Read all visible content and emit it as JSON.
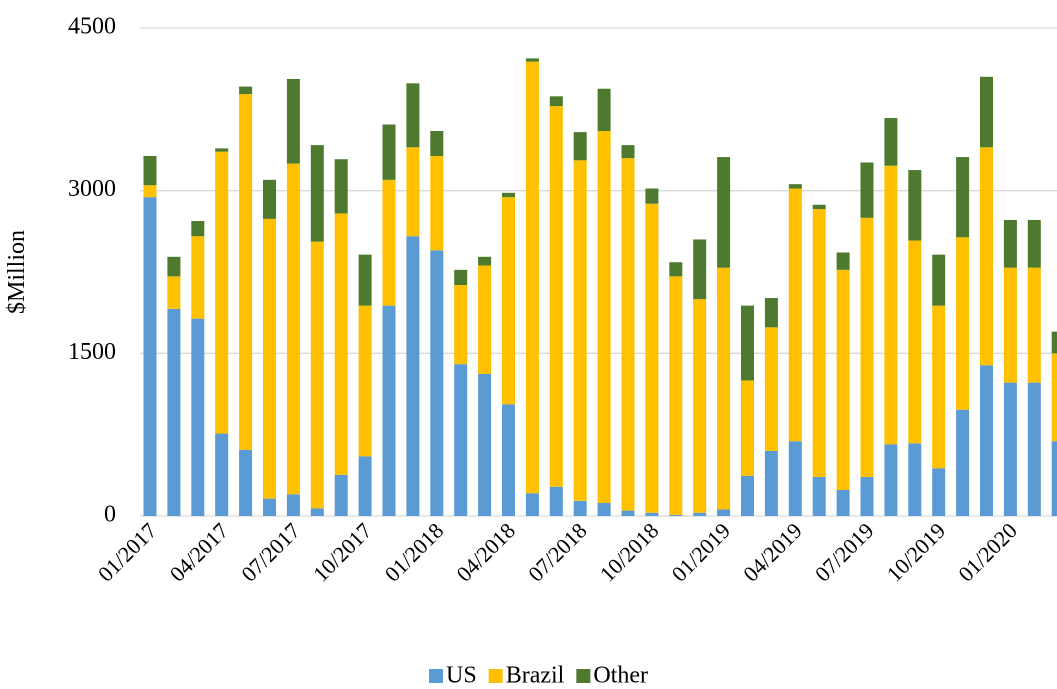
{
  "chart_data": {
    "type": "stacked_bar",
    "y_label": "$Million",
    "categories": [
      "01/2017",
      null,
      null,
      "04/2017",
      null,
      null,
      "07/2017",
      null,
      null,
      "10/2017",
      null,
      null,
      "01/2018",
      null,
      null,
      "04/2018",
      null,
      null,
      "07/2018",
      null,
      null,
      "10/2018",
      null,
      null,
      "01/2019",
      null,
      null,
      "04/2019",
      null,
      null,
      "07/2019",
      null,
      null,
      "10/2019",
      null,
      null,
      "01/2020",
      null,
      null
    ],
    "series": [
      {
        "name": "US",
        "color": "#5b9bd5",
        "values": [
          2940,
          1910,
          1820,
          760,
          610,
          160,
          200,
          70,
          380,
          550,
          1940,
          2580,
          2450,
          1400,
          1310,
          1030,
          210,
          270,
          140,
          120,
          50,
          30,
          10,
          30,
          60,
          370,
          600,
          690,
          360,
          240,
          360,
          660,
          670,
          440,
          980,
          1390,
          1230,
          1230,
          690
        ]
      },
      {
        "name": "Brazil",
        "color": "#ffc000",
        "values": [
          110,
          300,
          760,
          2600,
          3280,
          2580,
          3050,
          2460,
          2410,
          1390,
          1160,
          820,
          870,
          730,
          1000,
          1910,
          3980,
          3510,
          3140,
          3430,
          3250,
          2850,
          2200,
          1970,
          2230,
          880,
          1140,
          2330,
          2470,
          2030,
          2390,
          2570,
          1870,
          1500,
          1590,
          2010,
          1060,
          1060,
          810
        ]
      },
      {
        "name": "Other",
        "color": "#4e7a2f",
        "values": [
          270,
          180,
          140,
          30,
          70,
          360,
          780,
          890,
          500,
          470,
          510,
          590,
          230,
          140,
          80,
          40,
          30,
          90,
          260,
          390,
          120,
          140,
          130,
          550,
          1020,
          690,
          270,
          40,
          40,
          160,
          510,
          440,
          650,
          470,
          740,
          650,
          440,
          440,
          200
        ]
      }
    ],
    "ylim": [
      0,
      4500
    ],
    "yticks": [
      0,
      1500,
      3000,
      4500
    ],
    "grid": true,
    "legend": "bottom"
  }
}
